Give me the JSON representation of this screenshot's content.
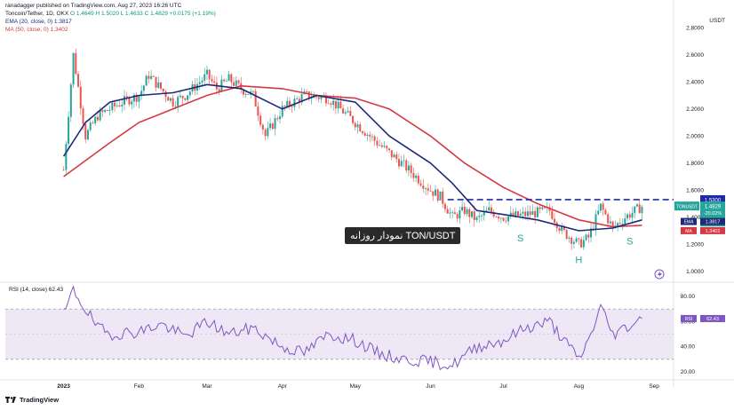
{
  "header": {
    "published": "ranadagger published on TradingView.com, Aug 27, 2023 16:26 UTC",
    "symbol_line": "Toncoin/Tether, 1D, OKX",
    "ohlc": "O 1.4649  H 1.5020  L 1.4633  C 1.4829  +0.0175 (+1.19%)",
    "ema_line": "EMA (20, close, 0)  1.3817",
    "ma_line": "MA (50, close, 0)  1.3402"
  },
  "currency": "USDT",
  "overlay_label": "TON/USDT نمودار روزانه",
  "pattern_labels": {
    "left_shoulder": "S",
    "head": "H",
    "right_shoulder": "S"
  },
  "rsi_header": "RSI (14, close)  62.43",
  "price_tags": {
    "resistance": "1.5300",
    "ticker": "TONUSDT",
    "price": "1.4829",
    "change": "-20.02%",
    "countdown": "07:33:28",
    "ema_tag": "EMA",
    "ema_val": "1.3817",
    "ma_tag": "MA",
    "ma_val": "1.3402",
    "rsi_tag": "RSI",
    "rsi_val": "62.43"
  },
  "footer": {
    "logo": "TradingView"
  },
  "colors": {
    "up": "#26a69a",
    "down": "#ef5350",
    "ema": "#1e2a78",
    "ma": "#d43a43",
    "rsi": "#7e57c2",
    "resistance": "#1e2aa8",
    "rsi_band": "#ede7f6"
  },
  "chart_data": [
    {
      "type": "candlestick",
      "title": "Toncoin/Tether, 1D, OKX",
      "y_axis_ticks": [
        "2.8000",
        "2.6000",
        "2.4000",
        "2.2000",
        "2.0000",
        "1.8000",
        "1.6000",
        "1.4000",
        "1.2000",
        "1.0000"
      ],
      "x_axis_ticks": [
        "2023",
        "Feb",
        "Mar",
        "Apr",
        "May",
        "Jun",
        "Jul",
        "Aug",
        "Sep"
      ],
      "ylim": [
        0.95,
        2.9
      ],
      "resistance_level": 1.53,
      "last_close": 1.4829,
      "series": [
        {
          "name": "EMA (20, close, 0)",
          "last": 1.3817,
          "x": [
            "2023-01-01",
            "2023-01-10",
            "2023-01-20",
            "2023-02-01",
            "2023-02-15",
            "2023-03-01",
            "2023-03-15",
            "2023-04-01",
            "2023-04-15",
            "2023-05-01",
            "2023-05-15",
            "2023-06-01",
            "2023-06-10",
            "2023-06-20",
            "2023-07-01",
            "2023-07-15",
            "2023-08-01",
            "2023-08-15",
            "2023-08-27"
          ],
          "values": [
            1.85,
            2.1,
            2.25,
            2.3,
            2.32,
            2.38,
            2.35,
            2.2,
            2.3,
            2.25,
            2.0,
            1.8,
            1.65,
            1.45,
            1.42,
            1.38,
            1.3,
            1.32,
            1.38
          ]
        },
        {
          "name": "MA (50, close, 0)",
          "last": 1.3402,
          "x": [
            "2023-01-01",
            "2023-01-20",
            "2023-02-01",
            "2023-02-15",
            "2023-03-01",
            "2023-03-15",
            "2023-04-01",
            "2023-04-15",
            "2023-05-01",
            "2023-05-15",
            "2023-06-01",
            "2023-06-15",
            "2023-07-01",
            "2023-07-15",
            "2023-08-01",
            "2023-08-15",
            "2023-08-27"
          ],
          "values": [
            1.7,
            1.95,
            2.1,
            2.2,
            2.3,
            2.37,
            2.35,
            2.3,
            2.28,
            2.2,
            2.0,
            1.8,
            1.62,
            1.5,
            1.38,
            1.33,
            1.34
          ]
        },
        {
          "name": "Close",
          "x": [
            "2023-01-01",
            "2023-01-05",
            "2023-01-10",
            "2023-01-15",
            "2023-01-20",
            "2023-01-25",
            "2023-02-01",
            "2023-02-05",
            "2023-02-10",
            "2023-02-15",
            "2023-02-20",
            "2023-03-01",
            "2023-03-05",
            "2023-03-10",
            "2023-03-15",
            "2023-03-20",
            "2023-03-25",
            "2023-04-01",
            "2023-04-10",
            "2023-04-20",
            "2023-05-01",
            "2023-05-10",
            "2023-05-20",
            "2023-06-01",
            "2023-06-05",
            "2023-06-10",
            "2023-06-15",
            "2023-06-20",
            "2023-06-25",
            "2023-07-01",
            "2023-07-10",
            "2023-07-20",
            "2023-07-25",
            "2023-08-01",
            "2023-08-05",
            "2023-08-10",
            "2023-08-15",
            "2023-08-20",
            "2023-08-27"
          ],
          "values": [
            1.75,
            2.6,
            2.0,
            2.15,
            2.2,
            2.25,
            2.3,
            2.45,
            2.35,
            2.25,
            2.3,
            2.45,
            2.35,
            2.42,
            2.35,
            2.3,
            2.0,
            2.2,
            2.3,
            2.28,
            2.1,
            1.95,
            1.8,
            1.6,
            1.55,
            1.4,
            1.45,
            1.38,
            1.45,
            1.4,
            1.42,
            1.45,
            1.3,
            1.2,
            1.25,
            1.48,
            1.32,
            1.4,
            1.48
          ]
        }
      ]
    },
    {
      "type": "line",
      "title": "RSI (14, close)",
      "y_axis_ticks": [
        "80.00",
        "60.00",
        "40.00",
        "20.00"
      ],
      "ylim": [
        20,
        85
      ],
      "bands": [
        70,
        30
      ],
      "last": 62.43,
      "series": [
        {
          "name": "RSI",
          "x": [
            "2023-01-01",
            "2023-01-05",
            "2023-01-10",
            "2023-01-15",
            "2023-01-20",
            "2023-02-01",
            "2023-02-10",
            "2023-02-20",
            "2023-03-01",
            "2023-03-10",
            "2023-03-20",
            "2023-04-01",
            "2023-04-10",
            "2023-04-20",
            "2023-05-01",
            "2023-05-10",
            "2023-05-20",
            "2023-06-01",
            "2023-06-10",
            "2023-06-20",
            "2023-07-01",
            "2023-07-10",
            "2023-07-20",
            "2023-08-01",
            "2023-08-05",
            "2023-08-10",
            "2023-08-15",
            "2023-08-20",
            "2023-08-27"
          ],
          "values": [
            65,
            85,
            70,
            55,
            50,
            52,
            58,
            48,
            60,
            50,
            55,
            40,
            35,
            50,
            45,
            35,
            30,
            28,
            25,
            40,
            45,
            55,
            60,
            30,
            45,
            72,
            50,
            55,
            62.43
          ]
        }
      ]
    }
  ]
}
